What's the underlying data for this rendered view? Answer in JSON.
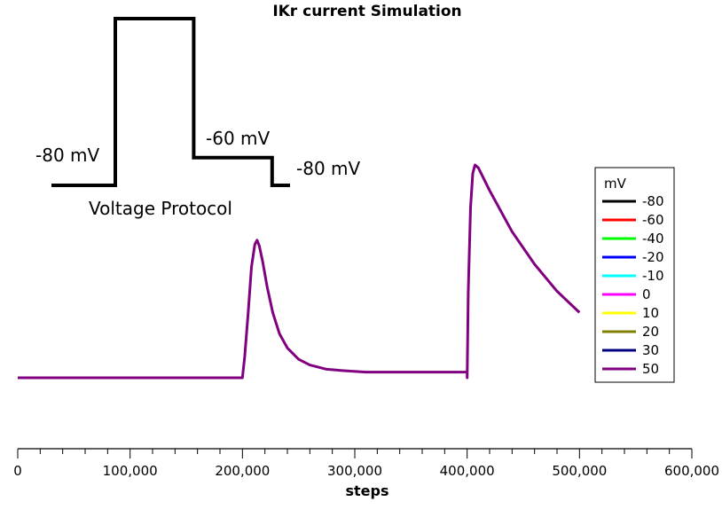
{
  "chart_data": {
    "type": "line",
    "title": "IKr current Simulation",
    "xlabel": "steps",
    "ylabel": "",
    "xlim": [
      0,
      600000
    ],
    "xticks": [
      0,
      100000,
      200000,
      300000,
      400000,
      500000,
      600000
    ],
    "xtick_labels": [
      "0",
      "100,000",
      "200,000",
      "300,000",
      "400,000",
      "500,000",
      "600,000"
    ],
    "legend": {
      "title": "mV",
      "position": "right",
      "entries": [
        {
          "label": "-80",
          "color": "#000000"
        },
        {
          "label": "-60",
          "color": "#ff0000"
        },
        {
          "label": "-40",
          "color": "#00ff00"
        },
        {
          "label": "-20",
          "color": "#0000ff"
        },
        {
          "label": "-10",
          "color": "#00ffff"
        },
        {
          "label": "0",
          "color": "#ff00ff"
        },
        {
          "label": "10",
          "color": "#ffff00"
        },
        {
          "label": "20",
          "color": "#808000"
        },
        {
          "label": "30",
          "color": "#000080"
        },
        {
          "label": "50",
          "color": "#800080"
        }
      ]
    },
    "current_trace": {
      "series_label": "50",
      "color": "#800080",
      "points": [
        [
          0,
          0
        ],
        [
          200000,
          0
        ],
        [
          202000,
          0.15
        ],
        [
          205000,
          0.45
        ],
        [
          208000,
          0.78
        ],
        [
          211000,
          0.94
        ],
        [
          213000,
          0.97
        ],
        [
          215000,
          0.93
        ],
        [
          218000,
          0.82
        ],
        [
          222000,
          0.64
        ],
        [
          227000,
          0.46
        ],
        [
          233000,
          0.31
        ],
        [
          240000,
          0.21
        ],
        [
          250000,
          0.13
        ],
        [
          260000,
          0.09
        ],
        [
          275000,
          0.06
        ],
        [
          290000,
          0.05
        ],
        [
          310000,
          0.04
        ],
        [
          400000,
          0.04
        ],
        [
          400000,
          0
        ],
        [
          401000,
          0.6
        ],
        [
          403000,
          1.2
        ],
        [
          405000,
          1.44
        ],
        [
          407000,
          1.5
        ],
        [
          410000,
          1.48
        ],
        [
          420000,
          1.32
        ],
        [
          440000,
          1.03
        ],
        [
          460000,
          0.8
        ],
        [
          480000,
          0.61
        ],
        [
          500000,
          0.46
        ]
      ]
    },
    "voltage_protocol": {
      "label": "Voltage Protocol",
      "step_labels": [
        "-80 mV",
        "-60 mV",
        "-80 mV"
      ],
      "points": [
        [
          30000,
          -80
        ],
        [
          87000,
          -80
        ],
        [
          87000,
          40
        ],
        [
          157000,
          40
        ],
        [
          157000,
          -60
        ],
        [
          227000,
          -60
        ],
        [
          227000,
          -80
        ],
        [
          243000,
          -80
        ]
      ],
      "ylim": [
        -80,
        40
      ]
    }
  }
}
